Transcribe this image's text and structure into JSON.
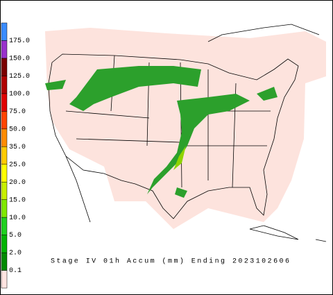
{
  "title": "Stage IV 01h Accum (mm) Ending 2023102606",
  "legend": {
    "labels": [
      "0.1",
      "2.0",
      "5.0",
      "10.0",
      "15.0",
      "20.0",
      "25.0",
      "35.0",
      "50.0",
      "75.0",
      "100.0",
      "125.0",
      "150.0",
      "175.0"
    ],
    "colors": [
      "#ffe4e1",
      "#008a00",
      "#00b400",
      "#20d020",
      "#80e800",
      "#c8f000",
      "#ffff00",
      "#ffcc00",
      "#ff8c00",
      "#ff4500",
      "#e00000",
      "#b00000",
      "#7a0000",
      "#9932cc",
      "#3a8cff"
    ]
  }
}
